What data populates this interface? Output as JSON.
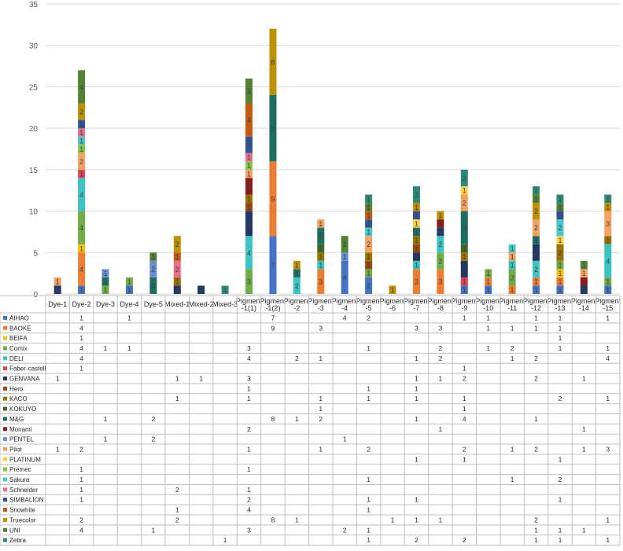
{
  "chart_data": {
    "type": "bar",
    "stacked": true,
    "title": "",
    "xlabel": "",
    "ylabel": "",
    "ylim": [
      0,
      35
    ],
    "yticks": [
      0,
      5,
      10,
      15,
      20,
      25,
      30,
      35
    ],
    "grid": true,
    "legend": "data-table",
    "categories": [
      "Dye-1",
      "Dye-2",
      "Dye-3",
      "Dye-4",
      "Dye-5",
      "Mixed-1",
      "Mixed-2",
      "Mixed-3",
      "Pigment\n-1(1)",
      "Pigment\n-1(2)",
      "Pigment\n-2",
      "Pigment\n-3",
      "Pigment\n-4",
      "Pigment\n-5",
      "Pigment\n-6",
      "Pigment\n-7",
      "Pigment\n-8",
      "Pigment\n-9",
      "Pigment\n-10",
      "Pigment\n-11",
      "Pigment\n-12",
      "Pigment\n-13",
      "Pigment\n-14",
      "Pigment\n-15"
    ],
    "series": [
      {
        "name": "AIHAO",
        "color": "#4472C4",
        "values": [
          null,
          1,
          null,
          1,
          null,
          null,
          null,
          null,
          null,
          7,
          null,
          null,
          4,
          2,
          null,
          null,
          null,
          1,
          1,
          null,
          1,
          1,
          null,
          1
        ]
      },
      {
        "name": "BAOKE",
        "color": "#ED7D31",
        "values": [
          null,
          4,
          null,
          null,
          null,
          null,
          null,
          null,
          null,
          9,
          null,
          3,
          null,
          null,
          null,
          3,
          3,
          null,
          1,
          1,
          1,
          1,
          null,
          null
        ]
      },
      {
        "name": "BEIFA",
        "color": "#FFC000",
        "values": [
          null,
          1,
          null,
          null,
          null,
          null,
          null,
          null,
          null,
          null,
          null,
          null,
          null,
          null,
          null,
          null,
          null,
          null,
          null,
          null,
          null,
          1,
          null,
          null
        ]
      },
      {
        "name": "Comix",
        "color": "#70AD47",
        "values": [
          null,
          4,
          1,
          1,
          null,
          null,
          null,
          null,
          3,
          null,
          null,
          null,
          null,
          1,
          null,
          null,
          2,
          null,
          1,
          2,
          null,
          1,
          null,
          1
        ]
      },
      {
        "name": "DELI",
        "color": "#3CC3C3",
        "values": [
          null,
          4,
          null,
          null,
          null,
          null,
          null,
          null,
          4,
          null,
          2,
          1,
          null,
          null,
          null,
          1,
          2,
          null,
          null,
          1,
          2,
          null,
          null,
          4
        ]
      },
      {
        "name": "Faber-castell",
        "color": "#E0445A",
        "values": [
          null,
          1,
          null,
          null,
          null,
          null,
          null,
          null,
          null,
          null,
          null,
          null,
          null,
          null,
          null,
          null,
          null,
          1,
          null,
          null,
          null,
          null,
          null,
          null
        ]
      },
      {
        "name": "GENVANA",
        "color": "#203864",
        "values": [
          1,
          null,
          null,
          null,
          null,
          1,
          1,
          null,
          3,
          null,
          null,
          null,
          null,
          null,
          null,
          1,
          1,
          2,
          null,
          null,
          2,
          null,
          1,
          null
        ]
      },
      {
        "name": "Hero",
        "color": "#9E480E",
        "values": [
          null,
          null,
          null,
          null,
          null,
          null,
          null,
          null,
          1,
          null,
          null,
          null,
          null,
          1,
          null,
          1,
          null,
          null,
          null,
          null,
          null,
          null,
          null,
          null
        ]
      },
      {
        "name": "KACO",
        "color": "#997300",
        "values": [
          null,
          null,
          null,
          null,
          null,
          1,
          null,
          null,
          1,
          null,
          null,
          1,
          null,
          1,
          null,
          1,
          null,
          1,
          null,
          null,
          null,
          2,
          null,
          1
        ]
      },
      {
        "name": "KOKUYO",
        "color": "#43682B",
        "values": [
          null,
          null,
          null,
          null,
          null,
          null,
          null,
          null,
          null,
          null,
          null,
          1,
          null,
          null,
          null,
          null,
          null,
          1,
          null,
          null,
          null,
          null,
          null,
          null
        ]
      },
      {
        "name": "M&G",
        "color": "#1E6E62",
        "values": [
          null,
          null,
          1,
          null,
          2,
          null,
          null,
          null,
          null,
          8,
          1,
          2,
          null,
          null,
          null,
          1,
          null,
          4,
          null,
          null,
          1,
          null,
          null,
          null
        ]
      },
      {
        "name": "Monami",
        "color": "#8B1A1A",
        "values": [
          null,
          null,
          null,
          null,
          null,
          null,
          null,
          null,
          2,
          null,
          null,
          null,
          null,
          null,
          null,
          null,
          1,
          null,
          null,
          null,
          null,
          null,
          1,
          null
        ]
      },
      {
        "name": "PENTEL",
        "color": "#698ED0",
        "values": [
          null,
          null,
          1,
          null,
          2,
          null,
          null,
          null,
          null,
          null,
          null,
          null,
          1,
          null,
          null,
          null,
          null,
          null,
          null,
          null,
          null,
          null,
          null,
          null
        ]
      },
      {
        "name": "Pilot",
        "color": "#F4A261",
        "values": [
          1,
          2,
          null,
          null,
          null,
          null,
          null,
          null,
          1,
          null,
          null,
          1,
          null,
          2,
          null,
          null,
          null,
          2,
          null,
          1,
          2,
          null,
          1,
          3
        ]
      },
      {
        "name": "PLATINUM",
        "color": "#FFD24D",
        "values": [
          null,
          null,
          null,
          null,
          null,
          null,
          null,
          null,
          null,
          null,
          null,
          null,
          null,
          null,
          null,
          1,
          null,
          1,
          null,
          null,
          null,
          1,
          null,
          null
        ]
      },
      {
        "name": "Premec",
        "color": "#8BC34A",
        "values": [
          null,
          1,
          null,
          null,
          null,
          null,
          null,
          null,
          1,
          null,
          null,
          null,
          null,
          null,
          null,
          null,
          null,
          null,
          null,
          null,
          null,
          null,
          null,
          null
        ]
      },
      {
        "name": "Sakura",
        "color": "#48C9C9",
        "values": [
          null,
          1,
          null,
          null,
          null,
          null,
          null,
          null,
          null,
          null,
          null,
          null,
          null,
          1,
          null,
          null,
          null,
          null,
          null,
          1,
          null,
          2,
          null,
          null
        ]
      },
      {
        "name": "Schneider",
        "color": "#E86F85",
        "values": [
          null,
          1,
          null,
          null,
          null,
          2,
          null,
          null,
          1,
          null,
          null,
          null,
          null,
          null,
          null,
          null,
          null,
          null,
          null,
          null,
          null,
          null,
          null,
          null
        ]
      },
      {
        "name": "SIMBALION",
        "color": "#2F5597",
        "values": [
          null,
          1,
          null,
          null,
          null,
          null,
          null,
          null,
          2,
          null,
          null,
          null,
          null,
          1,
          null,
          1,
          null,
          null,
          null,
          null,
          null,
          1,
          null,
          null
        ]
      },
      {
        "name": "Snowhite",
        "color": "#C55A11",
        "values": [
          null,
          null,
          null,
          null,
          null,
          1,
          null,
          null,
          4,
          null,
          null,
          null,
          null,
          1,
          null,
          null,
          null,
          null,
          null,
          null,
          null,
          null,
          null,
          null
        ]
      },
      {
        "name": "Truecolor",
        "color": "#BF9000",
        "values": [
          null,
          2,
          null,
          null,
          null,
          2,
          null,
          null,
          null,
          8,
          1,
          null,
          null,
          null,
          1,
          1,
          1,
          null,
          null,
          null,
          2,
          null,
          null,
          1
        ]
      },
      {
        "name": "UNI",
        "color": "#548235",
        "values": [
          null,
          4,
          null,
          null,
          1,
          null,
          null,
          null,
          3,
          null,
          null,
          null,
          2,
          1,
          null,
          null,
          null,
          null,
          null,
          null,
          1,
          1,
          1,
          null
        ]
      },
      {
        "name": "Zebra",
        "color": "#2E8B7A",
        "values": [
          null,
          null,
          null,
          null,
          null,
          null,
          null,
          1,
          null,
          null,
          null,
          null,
          null,
          1,
          null,
          2,
          null,
          2,
          null,
          null,
          1,
          1,
          null,
          1
        ]
      }
    ]
  }
}
